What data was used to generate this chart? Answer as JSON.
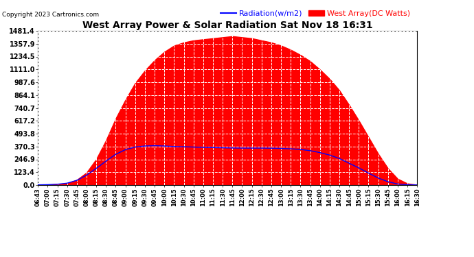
{
  "title": "West Array Power & Solar Radiation Sat Nov 18 16:31",
  "copyright": "Copyright 2023 Cartronics.com",
  "legend_radiation": "Radiation(w/m2)",
  "legend_west": "West Array(DC Watts)",
  "radiation_color": "#0000ff",
  "west_color": "#ff0000",
  "grid_color": "#ffffff",
  "bg_color": "#ffffff",
  "yticks": [
    0.0,
    123.4,
    246.9,
    370.3,
    493.8,
    617.2,
    740.7,
    864.1,
    987.6,
    1111.0,
    1234.5,
    1357.9,
    1481.4
  ],
  "ymax": 1481.4,
  "time_labels": [
    "06:43",
    "07:00",
    "07:15",
    "07:30",
    "07:45",
    "08:00",
    "08:15",
    "08:30",
    "08:45",
    "09:00",
    "09:15",
    "09:30",
    "09:45",
    "10:00",
    "10:15",
    "10:30",
    "10:45",
    "11:00",
    "11:15",
    "11:30",
    "11:45",
    "12:00",
    "12:15",
    "12:30",
    "12:45",
    "13:00",
    "13:15",
    "13:30",
    "13:45",
    "14:00",
    "14:15",
    "14:30",
    "14:45",
    "15:00",
    "15:15",
    "15:30",
    "15:45",
    "16:00",
    "16:15",
    "16:30"
  ],
  "west_array": [
    2,
    4,
    8,
    18,
    50,
    120,
    250,
    430,
    640,
    820,
    980,
    1100,
    1200,
    1280,
    1340,
    1370,
    1390,
    1400,
    1410,
    1420,
    1430,
    1420,
    1410,
    1390,
    1370,
    1340,
    1300,
    1250,
    1190,
    1110,
    1020,
    910,
    770,
    620,
    460,
    300,
    160,
    60,
    15,
    3
  ],
  "radiation": [
    2,
    4,
    8,
    18,
    45,
    95,
    160,
    230,
    295,
    340,
    365,
    375,
    378,
    375,
    370,
    368,
    365,
    362,
    360,
    358,
    356,
    355,
    355,
    355,
    354,
    352,
    348,
    342,
    330,
    312,
    288,
    255,
    210,
    165,
    115,
    68,
    32,
    10,
    3,
    1
  ]
}
